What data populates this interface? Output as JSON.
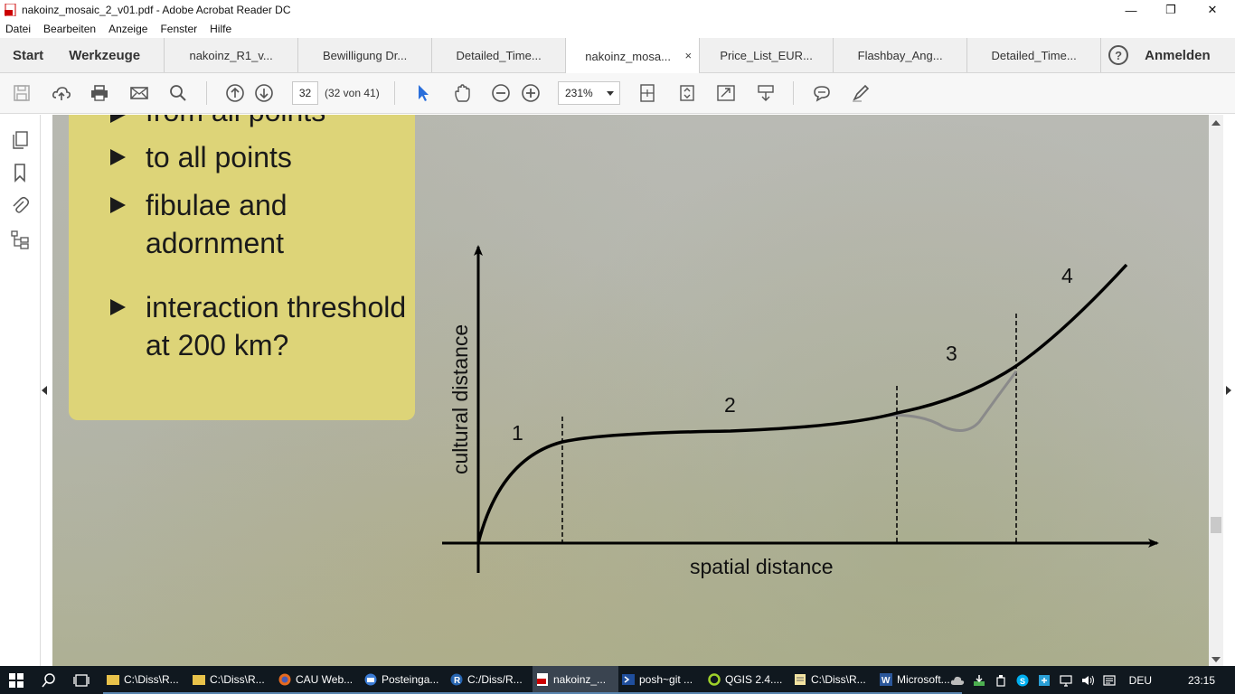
{
  "window": {
    "title": "nakoinz_mosaic_2_v01.pdf - Adobe Acrobat Reader DC",
    "minimize": "—",
    "maximize": "❐",
    "close": "✕"
  },
  "menu": [
    "Datei",
    "Bearbeiten",
    "Anzeige",
    "Fenster",
    "Hilfe"
  ],
  "nav": {
    "start": "Start",
    "tools": "Werkzeuge"
  },
  "tabs": [
    {
      "label": "nakoinz_R1_v...",
      "active": false
    },
    {
      "label": "Bewilligung Dr...",
      "active": false
    },
    {
      "label": "Detailed_Time...",
      "active": false
    },
    {
      "label": "nakoinz_mosa...",
      "active": true,
      "close": "×"
    },
    {
      "label": "Price_List_EUR...",
      "active": false
    },
    {
      "label": "Flashbay_Ang...",
      "active": false
    },
    {
      "label": "Detailed_Time...",
      "active": false
    }
  ],
  "help": {
    "icon": "?",
    "login": "Anmelden"
  },
  "toolbar": {
    "page_current": "32",
    "page_count": "(32 von 41)",
    "zoom": "231%"
  },
  "slide": {
    "bullets": [
      "from all points",
      "to all points",
      "fibulae and adornment",
      "interaction threshold at 200 km?"
    ]
  },
  "diagram": {
    "ylabel": "cultural distance",
    "xlabel": "spatial distance",
    "segment_labels": [
      "1",
      "2",
      "3",
      "4"
    ]
  },
  "taskbar": {
    "tasks": [
      {
        "label": "C:\\Diss\\R...",
        "icon": "folder-icon",
        "active": false
      },
      {
        "label": "C:\\Diss\\R...",
        "icon": "folder-icon",
        "active": false
      },
      {
        "label": "CAU Web...",
        "icon": "firefox-icon",
        "active": false
      },
      {
        "label": "Posteinga...",
        "icon": "thunderbird-icon",
        "active": false
      },
      {
        "label": "C:/Diss/R...",
        "icon": "r-icon",
        "active": false
      },
      {
        "label": "nakoinz_...",
        "icon": "acrobat-icon",
        "active": true
      },
      {
        "label": "posh~git ...",
        "icon": "powershell-icon",
        "active": false
      },
      {
        "label": "QGIS 2.4....",
        "icon": "qgis-icon",
        "active": false
      },
      {
        "label": "C:\\Diss\\R...",
        "icon": "notepad-icon",
        "active": false
      },
      {
        "label": "Microsoft...",
        "icon": "word-icon",
        "active": false
      }
    ],
    "lang": "DEU",
    "time": "23:15"
  },
  "colors": {
    "slide_box": "#ddd478",
    "taskbar": "#10181f",
    "accent_blue": "#2a6fdb"
  }
}
